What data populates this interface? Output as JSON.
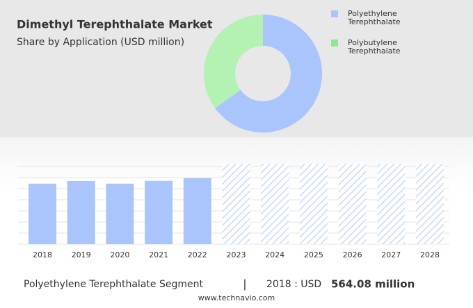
{
  "chart_data": [
    {
      "type": "donut",
      "title": "Dimethyl Terephthalate Market",
      "subtitle": "Share by Application (USD million)",
      "categories": [
        "Polyethylene Terephthalate",
        "Polybutylene Terephthalate"
      ],
      "values": [
        65,
        35
      ],
      "colors": [
        "#a9c5fb",
        "#b3f2b3"
      ],
      "legend_colors": [
        "#a9c5fb",
        "#8ee88e"
      ]
    },
    {
      "type": "bar",
      "categories": [
        "2018",
        "2019",
        "2020",
        "2021",
        "2022",
        "2023",
        "2024",
        "2025",
        "2026",
        "2027",
        "2028"
      ],
      "values": [
        564.08,
        589,
        564,
        590,
        615,
        null,
        null,
        null,
        null,
        null,
        null
      ],
      "color": "#a9c5fb",
      "forecast_color": "#c9d9fb",
      "ylim": [
        0,
        750
      ]
    }
  ],
  "footer": {
    "segment": "Polyethylene Terephthalate Segment",
    "separator": "|",
    "label": "2018 : USD",
    "value": "564.08 million",
    "source": "www.technavio.com"
  }
}
